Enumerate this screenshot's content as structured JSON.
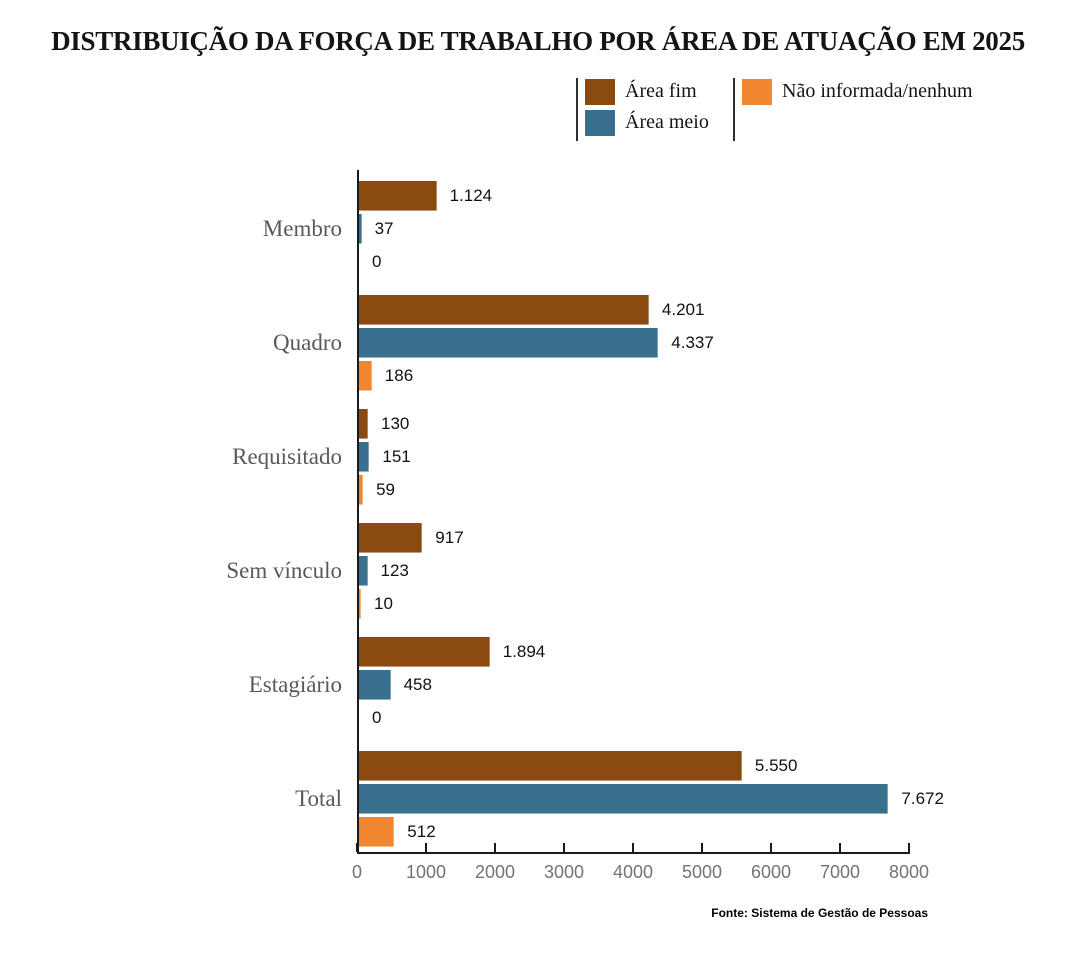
{
  "title": "DISTRIBUIÇÃO DA FORÇA DE TRABALHO POR ÁREA DE ATUAÇÃO EM 2025",
  "source": "Fonte: Sistema de Gestão de Pessoas",
  "colors": {
    "area_fim": "#8B4A10",
    "area_meio": "#38708E",
    "nao_informada": "#F0862F",
    "axis": "#1A1A1A",
    "category_label": "#595959",
    "tick_label": "#737373"
  },
  "legend": {
    "items": [
      {
        "label": "Área fim",
        "color": "#8B4A10"
      },
      {
        "label": "Área meio",
        "color": "#38708E"
      },
      {
        "label": "Não informada/nenhum",
        "color": "#F0862F"
      }
    ]
  },
  "chart_data": {
    "type": "bar",
    "orientation": "horizontal",
    "title": "DISTRIBUIÇÃO DA FORÇA DE TRABALHO POR ÁREA DE ATUAÇÃO EM 2025",
    "categories": [
      "Membro",
      "Quadro",
      "Requisitado",
      "Sem vínculo",
      "Estagiário",
      "Total"
    ],
    "series": [
      {
        "name": "Área fim",
        "color": "#8B4A10",
        "values": [
          1124,
          4201,
          130,
          917,
          1894,
          5550
        ],
        "labels": [
          "1.124",
          "4.201",
          "130",
          "917",
          "1.894",
          "5.550"
        ]
      },
      {
        "name": "Área meio",
        "color": "#38708E",
        "values": [
          37,
          4337,
          151,
          123,
          458,
          7672
        ],
        "labels": [
          "37",
          "4.337",
          "151",
          "123",
          "458",
          "7.672"
        ]
      },
      {
        "name": "Não informada/nenhum",
        "color": "#F0862F",
        "values": [
          0,
          186,
          59,
          10,
          0,
          512
        ],
        "labels": [
          "0",
          "186",
          "59",
          "10",
          "0",
          "512"
        ]
      }
    ],
    "xlabel": "",
    "ylabel": "",
    "xlim": [
      0,
      8000
    ],
    "xticks": [
      0,
      1000,
      2000,
      3000,
      4000,
      5000,
      6000,
      7000,
      8000
    ],
    "grid": false,
    "legend_position": "top"
  }
}
